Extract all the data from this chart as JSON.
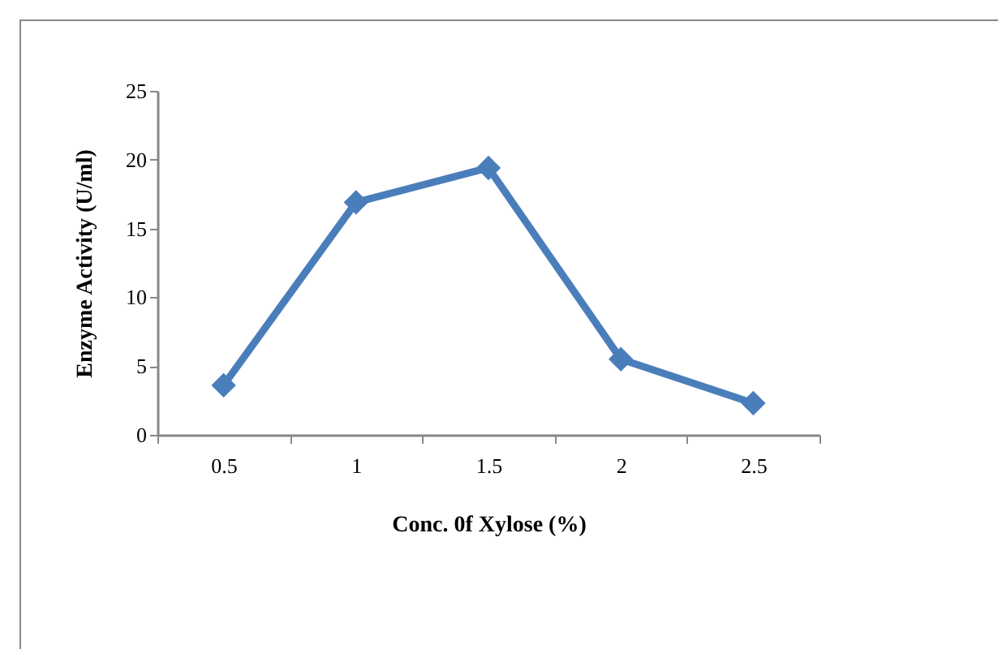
{
  "chart_data": {
    "type": "line",
    "xlabel": "Conc. 0f Xylose (%)",
    "ylabel": "Enzyme Activity (U/ml)",
    "categories": [
      "0.5",
      "1",
      "1.5",
      "2",
      "2.5"
    ],
    "series": [
      {
        "color": "#4a7ebb",
        "values": [
          3.6,
          16.9,
          19.4,
          5.5,
          2.3
        ]
      }
    ],
    "ylim": [
      0,
      25
    ],
    "yticks": [
      0,
      5,
      10,
      15,
      20,
      25
    ],
    "marker": "diamond",
    "line_style": "solid",
    "grid": false,
    "legend": false
  }
}
